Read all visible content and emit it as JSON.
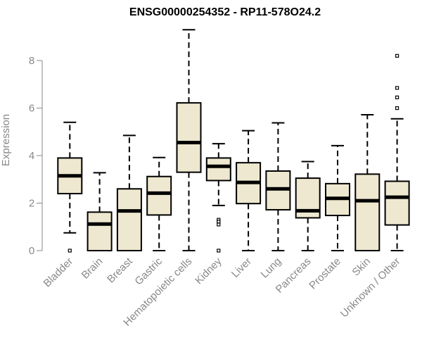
{
  "chart_data": {
    "type": "boxplot",
    "title": "ENSG00000254352 - RP11-578O24.2",
    "xlabel": "",
    "ylabel": "Expression",
    "ylim": [
      0,
      9.3
    ],
    "yticks": [
      0,
      2,
      4,
      6,
      8
    ],
    "box_fill": "#eee8d0",
    "line_color": "#000000",
    "axis_color": "#888888",
    "categories": [
      "Bladder",
      "Brain",
      "Breast",
      "Gastric",
      "Hematopoietic cells",
      "Kidney",
      "Liver",
      "Lung",
      "Pancreas",
      "Prostate",
      "Skin",
      "Unknown / Other"
    ],
    "boxes": [
      {
        "whisker_low": 0.75,
        "q1": 2.4,
        "median": 3.15,
        "q3": 3.9,
        "whisker_high": 5.4,
        "outliers": [
          0.0
        ]
      },
      {
        "whisker_low": 0.0,
        "q1": 0.0,
        "median": 1.12,
        "q3": 1.62,
        "whisker_high": 3.28,
        "outliers": []
      },
      {
        "whisker_low": 0.0,
        "q1": 0.0,
        "median": 1.67,
        "q3": 2.6,
        "whisker_high": 4.85,
        "outliers": []
      },
      {
        "whisker_low": 0.0,
        "q1": 1.5,
        "median": 2.42,
        "q3": 3.12,
        "whisker_high": 3.92,
        "outliers": []
      },
      {
        "whisker_low": 0.0,
        "q1": 3.3,
        "median": 4.55,
        "q3": 6.22,
        "whisker_high": 9.3,
        "outliers": []
      },
      {
        "whisker_low": 1.9,
        "q1": 2.95,
        "median": 3.55,
        "q3": 3.9,
        "whisker_high": 4.5,
        "outliers": [
          1.3,
          1.22,
          1.1,
          0.0
        ]
      },
      {
        "whisker_low": 0.0,
        "q1": 1.98,
        "median": 2.87,
        "q3": 3.7,
        "whisker_high": 5.05,
        "outliers": []
      },
      {
        "whisker_low": 0.0,
        "q1": 1.72,
        "median": 2.6,
        "q3": 3.35,
        "whisker_high": 5.38,
        "outliers": []
      },
      {
        "whisker_low": 0.0,
        "q1": 1.38,
        "median": 1.68,
        "q3": 3.05,
        "whisker_high": 3.75,
        "outliers": []
      },
      {
        "whisker_low": 0.0,
        "q1": 1.48,
        "median": 2.2,
        "q3": 2.82,
        "whisker_high": 4.42,
        "outliers": []
      },
      {
        "whisker_low": 0.0,
        "q1": 0.0,
        "median": 2.1,
        "q3": 3.22,
        "whisker_high": 5.72,
        "outliers": []
      },
      {
        "whisker_low": 0.0,
        "q1": 1.08,
        "median": 2.25,
        "q3": 2.92,
        "whisker_high": 5.55,
        "outliers": [
          6.0,
          6.45,
          6.85,
          8.2
        ]
      }
    ]
  }
}
